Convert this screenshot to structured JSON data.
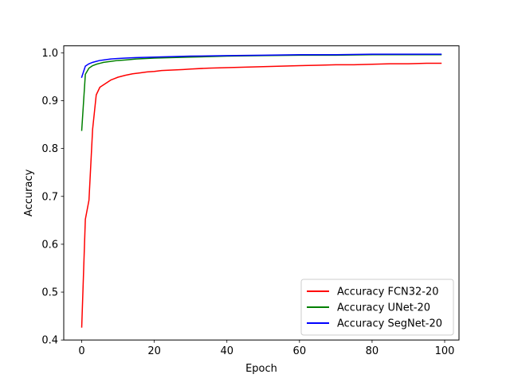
{
  "chart_data": {
    "type": "line",
    "title": "",
    "xlabel": "Epoch",
    "ylabel": "Accuracy",
    "xlim": [
      -4.95,
      103.95
    ],
    "ylim": [
      0.4,
      1.0145
    ],
    "xticks": [
      0,
      20,
      40,
      60,
      80,
      100
    ],
    "yticks": [
      0.4,
      0.5,
      0.6,
      0.7,
      0.8,
      0.9,
      1.0
    ],
    "xtick_labels": [
      "0",
      "20",
      "40",
      "60",
      "80",
      "100"
    ],
    "ytick_labels": [
      "0.4",
      "0.5",
      "0.6",
      "0.7",
      "0.8",
      "0.9",
      "1.0"
    ],
    "grid": false,
    "legend_position": "lower-right",
    "series": [
      {
        "name": "Accuracy FCN32-20",
        "color": "#ff0000",
        "x": [
          0,
          1,
          2,
          3,
          4,
          5,
          6,
          7,
          8,
          9,
          10,
          12,
          14,
          16,
          18,
          20,
          22,
          25,
          28,
          30,
          35,
          40,
          45,
          50,
          55,
          60,
          65,
          70,
          75,
          80,
          85,
          90,
          95,
          99
        ],
        "y": [
          0.427,
          0.652,
          0.692,
          0.84,
          0.912,
          0.928,
          0.933,
          0.938,
          0.943,
          0.946,
          0.949,
          0.953,
          0.956,
          0.958,
          0.96,
          0.961,
          0.963,
          0.964,
          0.965,
          0.966,
          0.968,
          0.969,
          0.97,
          0.971,
          0.972,
          0.973,
          0.974,
          0.975,
          0.975,
          0.976,
          0.977,
          0.977,
          0.978,
          0.978
        ]
      },
      {
        "name": "Accuracy UNet-20",
        "color": "#008000",
        "x": [
          0,
          1,
          2,
          3,
          4,
          5,
          6,
          8,
          10,
          12,
          15,
          20,
          25,
          30,
          40,
          50,
          60,
          70,
          80,
          90,
          99
        ],
        "y": [
          0.838,
          0.955,
          0.968,
          0.973,
          0.976,
          0.978,
          0.98,
          0.982,
          0.984,
          0.985,
          0.987,
          0.989,
          0.99,
          0.991,
          0.993,
          0.994,
          0.995,
          0.995,
          0.996,
          0.996,
          0.996
        ]
      },
      {
        "name": "Accuracy SegNet-20",
        "color": "#0000ff",
        "x": [
          0,
          1,
          2,
          3,
          4,
          5,
          6,
          8,
          10,
          12,
          15,
          20,
          25,
          30,
          40,
          50,
          60,
          70,
          80,
          90,
          99
        ],
        "y": [
          0.949,
          0.972,
          0.977,
          0.98,
          0.982,
          0.984,
          0.985,
          0.987,
          0.988,
          0.989,
          0.99,
          0.991,
          0.992,
          0.993,
          0.994,
          0.995,
          0.996,
          0.996,
          0.997,
          0.997,
          0.997
        ]
      }
    ]
  }
}
